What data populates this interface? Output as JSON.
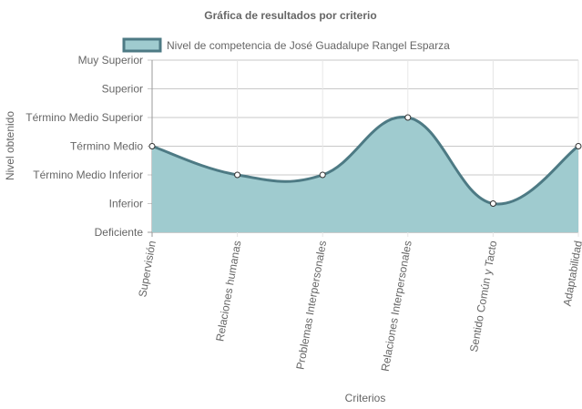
{
  "chart_data": {
    "type": "area",
    "title": "Gráfica de resultados por criterio",
    "xlabel": "Criterios",
    "ylabel": "Nivel obtenido",
    "y_levels": [
      "Deficiente",
      "Inferior",
      "Término Medio Inferior",
      "Término Medio",
      "Término Medio Superior",
      "Superior",
      "Muy Superior"
    ],
    "categories": [
      "Supervisión",
      "Relaciones humanas",
      "Problemas Interpersonales",
      "Relaciones Interpersonales",
      "Sentido Común y Tacto",
      "Adaptabilidad"
    ],
    "series": [
      {
        "name": "Nivel de competencia de José Guadalupe Rangel Esparza",
        "values": [
          "Término Medio",
          "Término Medio Inferior",
          "Término Medio Inferior",
          "Término Medio Superior",
          "Inferior",
          "Término Medio"
        ],
        "fill_color": "#9fcbcf",
        "line_color": "#4d7a84"
      }
    ],
    "legend_position": "top",
    "grid": true,
    "curve": "smooth"
  }
}
